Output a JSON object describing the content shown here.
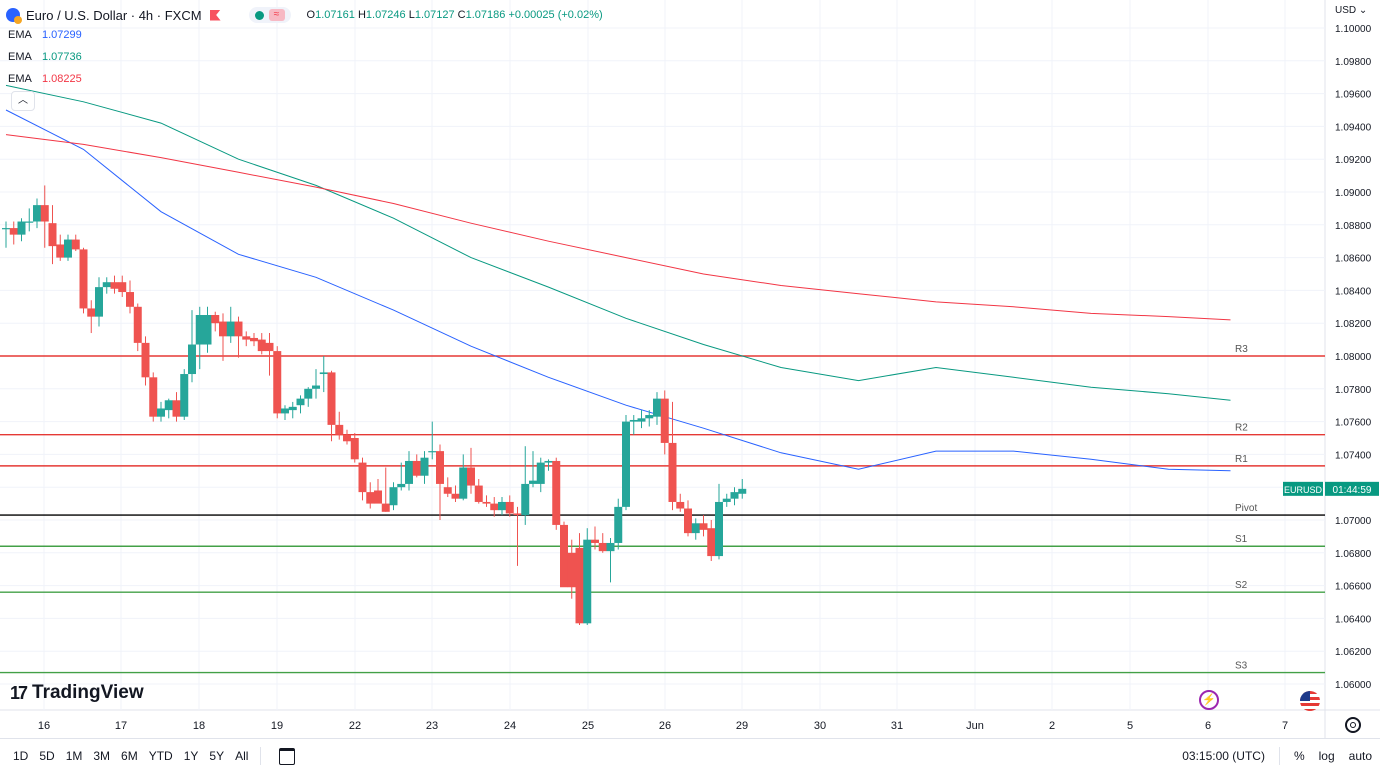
{
  "header": {
    "symbol_title": "Euro / U.S. Dollar · 4h · FXCM",
    "open_label": "O",
    "open": "1.07161",
    "high_label": "H",
    "high": "1.07246",
    "low_label": "L",
    "low": "1.07127",
    "close_label": "C",
    "close": "1.07186",
    "change": "+0.00025 (+0.02%)"
  },
  "indicators": [
    {
      "label": "EMA",
      "value": "1.07299",
      "color": "#2962ff"
    },
    {
      "label": "EMA",
      "value": "1.07736",
      "color": "#089981"
    },
    {
      "label": "EMA",
      "value": "1.08225",
      "color": "#f23645"
    }
  ],
  "price_axis": {
    "currency": "USD",
    "ticks": [
      "1.10000",
      "1.09800",
      "1.09600",
      "1.09400",
      "1.09200",
      "1.09000",
      "1.08800",
      "1.08600",
      "1.08400",
      "1.08200",
      "1.08000",
      "1.07800",
      "1.07600",
      "1.07400",
      "1.07200",
      "1.07000",
      "1.06800",
      "1.06600",
      "1.06400",
      "1.06200",
      "1.06000"
    ]
  },
  "price_label": {
    "symbol": "EURUSD",
    "countdown": "01:44:59",
    "color": "#089981"
  },
  "time_axis": {
    "labels": [
      "16",
      "17",
      "18",
      "19",
      "22",
      "23",
      "24",
      "25",
      "26",
      "29",
      "30",
      "31",
      "Jun",
      "2",
      "5",
      "6",
      "7"
    ]
  },
  "branding": {
    "logo_text": "TradingView"
  },
  "bottom_bar": {
    "timeframes": [
      "1D",
      "5D",
      "1M",
      "3M",
      "6M",
      "YTD",
      "1Y",
      "5Y",
      "All"
    ],
    "clock": "03:15:00 (UTC)",
    "percent": "%",
    "log": "log",
    "auto": "auto"
  },
  "chart_data": {
    "type": "candlestick",
    "timeframe": "4h",
    "colors": {
      "up": "#26a69a",
      "down": "#ef5350"
    },
    "ylim": [
      1.059,
      1.1
    ],
    "candles": [
      {
        "o": 1.0878,
        "h": 1.0882,
        "l": 1.0866,
        "c": 1.0878
      },
      {
        "o": 1.0878,
        "h": 1.0882,
        "l": 1.0868,
        "c": 1.0874
      },
      {
        "o": 1.0874,
        "h": 1.0884,
        "l": 1.087,
        "c": 1.0882
      },
      {
        "o": 1.0882,
        "h": 1.089,
        "l": 1.0876,
        "c": 1.0882
      },
      {
        "o": 1.0882,
        "h": 1.0896,
        "l": 1.0878,
        "c": 1.0892
      },
      {
        "o": 1.0892,
        "h": 1.0904,
        "l": 1.0866,
        "c": 1.0882
      },
      {
        "o": 1.0881,
        "h": 1.0892,
        "l": 1.0856,
        "c": 1.0867
      },
      {
        "o": 1.0868,
        "h": 1.0874,
        "l": 1.0858,
        "c": 1.086
      },
      {
        "o": 1.086,
        "h": 1.0874,
        "l": 1.0858,
        "c": 1.0871
      },
      {
        "o": 1.0871,
        "h": 1.0874,
        "l": 1.0864,
        "c": 1.0865
      },
      {
        "o": 1.0865,
        "h": 1.0866,
        "l": 1.0826,
        "c": 1.0829
      },
      {
        "o": 1.0829,
        "h": 1.0834,
        "l": 1.0814,
        "c": 1.0824
      },
      {
        "o": 1.0824,
        "h": 1.0848,
        "l": 1.0818,
        "c": 1.0842
      },
      {
        "o": 1.0842,
        "h": 1.0848,
        "l": 1.0838,
        "c": 1.0845
      },
      {
        "o": 1.0845,
        "h": 1.0849,
        "l": 1.0838,
        "c": 1.0841
      },
      {
        "o": 1.0845,
        "h": 1.0849,
        "l": 1.0836,
        "c": 1.0839
      },
      {
        "o": 1.0839,
        "h": 1.0846,
        "l": 1.0826,
        "c": 1.083
      },
      {
        "o": 1.083,
        "h": 1.0832,
        "l": 1.0803,
        "c": 1.0808
      },
      {
        "o": 1.0808,
        "h": 1.0812,
        "l": 1.0782,
        "c": 1.0787
      },
      {
        "o": 1.0787,
        "h": 1.079,
        "l": 1.076,
        "c": 1.0763
      },
      {
        "o": 1.0763,
        "h": 1.0772,
        "l": 1.076,
        "c": 1.0768
      },
      {
        "o": 1.0767,
        "h": 1.0774,
        "l": 1.0762,
        "c": 1.0773
      },
      {
        "o": 1.0773,
        "h": 1.0778,
        "l": 1.076,
        "c": 1.0763
      },
      {
        "o": 1.0763,
        "h": 1.0792,
        "l": 1.0761,
        "c": 1.0789
      },
      {
        "o": 1.0789,
        "h": 1.0828,
        "l": 1.0784,
        "c": 1.0807
      },
      {
        "o": 1.0807,
        "h": 1.083,
        "l": 1.0792,
        "c": 1.0825
      },
      {
        "o": 1.0807,
        "h": 1.083,
        "l": 1.0802,
        "c": 1.0825
      },
      {
        "o": 1.0825,
        "h": 1.0827,
        "l": 1.0815,
        "c": 1.082
      },
      {
        "o": 1.0821,
        "h": 1.0826,
        "l": 1.0797,
        "c": 1.0812
      },
      {
        "o": 1.0812,
        "h": 1.083,
        "l": 1.0808,
        "c": 1.0821
      },
      {
        "o": 1.0821,
        "h": 1.0824,
        "l": 1.0799,
        "c": 1.0812
      },
      {
        "o": 1.0812,
        "h": 1.0815,
        "l": 1.0806,
        "c": 1.081
      },
      {
        "o": 1.0811,
        "h": 1.0814,
        "l": 1.0806,
        "c": 1.0809
      },
      {
        "o": 1.081,
        "h": 1.0814,
        "l": 1.0801,
        "c": 1.0803
      },
      {
        "o": 1.0808,
        "h": 1.0814,
        "l": 1.0788,
        "c": 1.0803
      },
      {
        "o": 1.0803,
        "h": 1.0806,
        "l": 1.0762,
        "c": 1.0765
      },
      {
        "o": 1.0765,
        "h": 1.077,
        "l": 1.0761,
        "c": 1.0768
      },
      {
        "o": 1.0767,
        "h": 1.0772,
        "l": 1.0762,
        "c": 1.0769
      },
      {
        "o": 1.077,
        "h": 1.0776,
        "l": 1.0765,
        "c": 1.0774
      },
      {
        "o": 1.0774,
        "h": 1.0781,
        "l": 1.0769,
        "c": 1.078
      },
      {
        "o": 1.078,
        "h": 1.0792,
        "l": 1.0774,
        "c": 1.0782
      },
      {
        "o": 1.0789,
        "h": 1.08,
        "l": 1.0778,
        "c": 1.079
      },
      {
        "o": 1.079,
        "h": 1.0791,
        "l": 1.0748,
        "c": 1.0758
      },
      {
        "o": 1.0758,
        "h": 1.0766,
        "l": 1.0749,
        "c": 1.0752
      },
      {
        "o": 1.0752,
        "h": 1.0755,
        "l": 1.0746,
        "c": 1.0748
      },
      {
        "o": 1.075,
        "h": 1.0753,
        "l": 1.0735,
        "c": 1.0737
      },
      {
        "o": 1.0735,
        "h": 1.0738,
        "l": 1.0712,
        "c": 1.0717
      },
      {
        "o": 1.0717,
        "h": 1.0723,
        "l": 1.0707,
        "c": 1.071
      },
      {
        "o": 1.0718,
        "h": 1.0725,
        "l": 1.0714,
        "c": 1.071
      },
      {
        "o": 1.071,
        "h": 1.0732,
        "l": 1.0705,
        "c": 1.0705
      },
      {
        "o": 1.0709,
        "h": 1.0723,
        "l": 1.0706,
        "c": 1.072
      },
      {
        "o": 1.072,
        "h": 1.0735,
        "l": 1.0718,
        "c": 1.0722
      },
      {
        "o": 1.0722,
        "h": 1.0742,
        "l": 1.0718,
        "c": 1.0736
      },
      {
        "o": 1.0736,
        "h": 1.074,
        "l": 1.0726,
        "c": 1.0727
      },
      {
        "o": 1.0727,
        "h": 1.0742,
        "l": 1.0722,
        "c": 1.0738
      },
      {
        "o": 1.0742,
        "h": 1.076,
        "l": 1.0737,
        "c": 1.0742
      },
      {
        "o": 1.0742,
        "h": 1.0746,
        "l": 1.07,
        "c": 1.0722
      },
      {
        "o": 1.072,
        "h": 1.0726,
        "l": 1.0714,
        "c": 1.0716
      },
      {
        "o": 1.0716,
        "h": 1.0721,
        "l": 1.0711,
        "c": 1.0713
      },
      {
        "o": 1.0713,
        "h": 1.074,
        "l": 1.0712,
        "c": 1.0732
      },
      {
        "o": 1.0732,
        "h": 1.0744,
        "l": 1.0716,
        "c": 1.0721
      },
      {
        "o": 1.0721,
        "h": 1.0725,
        "l": 1.071,
        "c": 1.0711
      },
      {
        "o": 1.0711,
        "h": 1.0715,
        "l": 1.0708,
        "c": 1.071
      },
      {
        "o": 1.071,
        "h": 1.0714,
        "l": 1.0702,
        "c": 1.0706
      },
      {
        "o": 1.0706,
        "h": 1.0714,
        "l": 1.0703,
        "c": 1.0711
      },
      {
        "o": 1.0711,
        "h": 1.0715,
        "l": 1.0702,
        "c": 1.0704
      },
      {
        "o": 1.0704,
        "h": 1.0708,
        "l": 1.0672,
        "c": 1.0703
      },
      {
        "o": 1.0703,
        "h": 1.0745,
        "l": 1.0697,
        "c": 1.0722
      },
      {
        "o": 1.0722,
        "h": 1.0742,
        "l": 1.072,
        "c": 1.0724
      },
      {
        "o": 1.0722,
        "h": 1.0738,
        "l": 1.0717,
        "c": 1.0735
      },
      {
        "o": 1.0735,
        "h": 1.0737,
        "l": 1.073,
        "c": 1.0736
      },
      {
        "o": 1.0736,
        "h": 1.0738,
        "l": 1.0694,
        "c": 1.0697
      },
      {
        "o": 1.0697,
        "h": 1.0699,
        "l": 1.066,
        "c": 1.0659
      },
      {
        "o": 1.068,
        "h": 1.0688,
        "l": 1.0652,
        "c": 1.0659
      },
      {
        "o": 1.0683,
        "h": 1.0692,
        "l": 1.0636,
        "c": 1.0637
      },
      {
        "o": 1.0637,
        "h": 1.0695,
        "l": 1.0636,
        "c": 1.0688
      },
      {
        "o": 1.0688,
        "h": 1.0696,
        "l": 1.0682,
        "c": 1.0686
      },
      {
        "o": 1.0686,
        "h": 1.0692,
        "l": 1.068,
        "c": 1.0681
      },
      {
        "o": 1.0681,
        "h": 1.0689,
        "l": 1.0662,
        "c": 1.0686
      },
      {
        "o": 1.0686,
        "h": 1.0713,
        "l": 1.0682,
        "c": 1.0708
      },
      {
        "o": 1.0708,
        "h": 1.0764,
        "l": 1.0706,
        "c": 1.076
      },
      {
        "o": 1.076,
        "h": 1.0764,
        "l": 1.0752,
        "c": 1.0761
      },
      {
        "o": 1.076,
        "h": 1.0767,
        "l": 1.0756,
        "c": 1.0762
      },
      {
        "o": 1.0762,
        "h": 1.0767,
        "l": 1.0757,
        "c": 1.0764
      },
      {
        "o": 1.0763,
        "h": 1.0778,
        "l": 1.0758,
        "c": 1.0774
      },
      {
        "o": 1.0774,
        "h": 1.0779,
        "l": 1.074,
        "c": 1.0747
      },
      {
        "o": 1.0747,
        "h": 1.0772,
        "l": 1.0706,
        "c": 1.0711
      },
      {
        "o": 1.0711,
        "h": 1.0716,
        "l": 1.0705,
        "c": 1.0707
      },
      {
        "o": 1.0707,
        "h": 1.0712,
        "l": 1.069,
        "c": 1.0692
      },
      {
        "o": 1.0692,
        "h": 1.0701,
        "l": 1.0688,
        "c": 1.0698
      },
      {
        "o": 1.0698,
        "h": 1.0703,
        "l": 1.069,
        "c": 1.0694
      },
      {
        "o": 1.0695,
        "h": 1.07,
        "l": 1.0675,
        "c": 1.0678
      },
      {
        "o": 1.0678,
        "h": 1.0722,
        "l": 1.0676,
        "c": 1.0711
      },
      {
        "o": 1.0711,
        "h": 1.0716,
        "l": 1.0708,
        "c": 1.0713
      },
      {
        "o": 1.0713,
        "h": 1.072,
        "l": 1.0709,
        "c": 1.0717
      },
      {
        "o": 1.0716,
        "h": 1.0725,
        "l": 1.0713,
        "c": 1.0719
      }
    ],
    "ema_lines": [
      {
        "label": "EMA",
        "color": "#2962ff",
        "points": [
          [
            0,
            1.095
          ],
          [
            10,
            1.0926
          ],
          [
            20,
            1.0888
          ],
          [
            30,
            1.0862
          ],
          [
            40,
            1.0848
          ],
          [
            50,
            1.0828
          ],
          [
            60,
            1.0806
          ],
          [
            70,
            1.0787
          ],
          [
            80,
            1.077
          ],
          [
            90,
            1.0756
          ],
          [
            100,
            1.0741
          ],
          [
            110,
            1.0731
          ],
          [
            120,
            1.0742
          ],
          [
            130,
            1.0742
          ],
          [
            140,
            1.0737
          ],
          [
            150,
            1.0731
          ],
          [
            158,
            1.073
          ]
        ]
      },
      {
        "label": "EMA",
        "color": "#089981",
        "points": [
          [
            0,
            1.0965
          ],
          [
            10,
            1.0955
          ],
          [
            20,
            1.0942
          ],
          [
            30,
            1.092
          ],
          [
            40,
            1.0904
          ],
          [
            50,
            1.0884
          ],
          [
            60,
            1.086
          ],
          [
            70,
            1.0842
          ],
          [
            80,
            1.0823
          ],
          [
            90,
            1.0807
          ],
          [
            100,
            1.0793
          ],
          [
            110,
            1.0785
          ],
          [
            120,
            1.0793
          ],
          [
            130,
            1.0787
          ],
          [
            140,
            1.0781
          ],
          [
            150,
            1.0777
          ],
          [
            158,
            1.0773
          ]
        ]
      },
      {
        "label": "EMA",
        "color": "#f23645",
        "points": [
          [
            0,
            1.0935
          ],
          [
            10,
            1.0929
          ],
          [
            20,
            1.0921
          ],
          [
            30,
            1.0912
          ],
          [
            40,
            1.0903
          ],
          [
            50,
            1.0893
          ],
          [
            60,
            1.0881
          ],
          [
            70,
            1.087
          ],
          [
            80,
            1.086
          ],
          [
            90,
            1.085
          ],
          [
            100,
            1.0843
          ],
          [
            110,
            1.0838
          ],
          [
            120,
            1.0833
          ],
          [
            130,
            1.083
          ],
          [
            140,
            1.0826
          ],
          [
            150,
            1.0824
          ],
          [
            158,
            1.0822
          ]
        ]
      }
    ],
    "pivot_levels": [
      {
        "label": "R3",
        "value": 1.08,
        "color": "#e53935"
      },
      {
        "label": "R2",
        "value": 1.0752,
        "color": "#e53935"
      },
      {
        "label": "R1",
        "value": 1.0733,
        "color": "#e53935"
      },
      {
        "label": "Pivot",
        "value": 1.0703,
        "color": "#000000"
      },
      {
        "label": "S1",
        "value": 1.0684,
        "color": "#43a047"
      },
      {
        "label": "S2",
        "value": 1.0656,
        "color": "#43a047"
      },
      {
        "label": "S3",
        "value": 1.0607,
        "color": "#43a047"
      }
    ],
    "last_price": 1.0719
  }
}
